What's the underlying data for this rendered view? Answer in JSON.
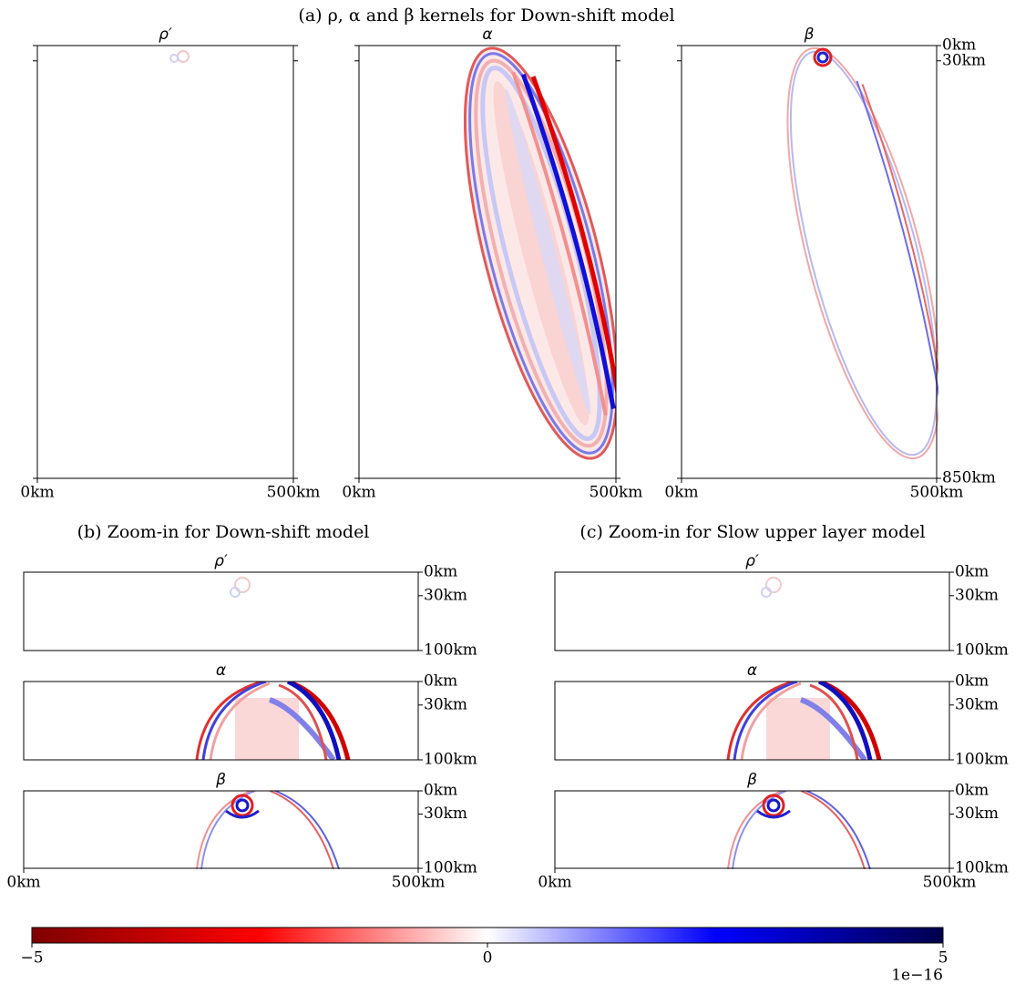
{
  "sections": [
    {
      "title": "(a) ρ, α and β kernels for Down-shift model",
      "panels": [
        {
          "title": "ρ′"
        },
        {
          "title": "α"
        },
        {
          "title": "β"
        }
      ],
      "xlim": [
        0,
        500
      ],
      "xticks": [
        {
          "value": 0,
          "label": "0km"
        },
        {
          "value": 500,
          "label": "500km"
        }
      ],
      "ylim": [
        0,
        850
      ],
      "yticks": [
        {
          "value": 0,
          "label": "0km"
        },
        {
          "value": 30,
          "label": "30km"
        },
        {
          "value": 850,
          "label": "850km"
        }
      ]
    },
    {
      "title": "(b) Zoom-in for Down-shift model",
      "panels": [
        {
          "title": "ρ′"
        },
        {
          "title": "α"
        },
        {
          "title": "β"
        }
      ],
      "xlim": [
        0,
        500
      ],
      "xticks": [
        {
          "value": 0,
          "label": "0km"
        },
        {
          "value": 500,
          "label": "500km"
        }
      ],
      "ylim": [
        0,
        100
      ],
      "yticks": [
        {
          "value": 0,
          "label": "0km"
        },
        {
          "value": 30,
          "label": "30km"
        },
        {
          "value": 100,
          "label": "100km"
        }
      ]
    },
    {
      "title": "(c) Zoom-in for Slow upper layer model",
      "panels": [
        {
          "title": "ρ′"
        },
        {
          "title": "α"
        },
        {
          "title": "β"
        }
      ],
      "xlim": [
        0,
        500
      ],
      "xticks": [
        {
          "value": 0,
          "label": "0km"
        },
        {
          "value": 500,
          "label": "500km"
        }
      ],
      "ylim": [
        0,
        100
      ],
      "yticks": [
        {
          "value": 0,
          "label": "0km"
        },
        {
          "value": 30,
          "label": "30km"
        },
        {
          "value": 100,
          "label": "100km"
        }
      ]
    }
  ],
  "colorbar": {
    "colors": [
      "#7f0000",
      "#ff0000",
      "#ffffff",
      "#0000ff",
      "#00004c"
    ],
    "lim": [
      -5,
      5
    ],
    "ticks": [
      {
        "value": -5,
        "label": "−5"
      },
      0,
      5
    ],
    "offset_label": "1e−16"
  }
}
